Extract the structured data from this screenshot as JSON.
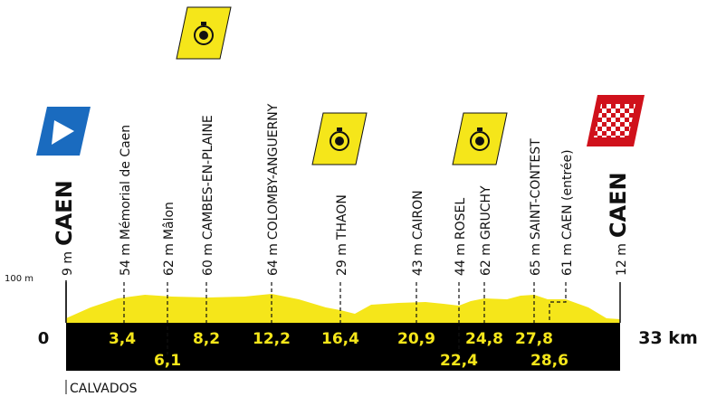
{
  "scale_label": "100 m",
  "start_label": "0",
  "finish_label": "33 km",
  "region": "CALVADOS",
  "waypoints": [
    {
      "elevation": "9 m",
      "name": "CAEN"
    },
    {
      "elevation": "54 m",
      "name": "Mémorial de Caen",
      "km": "3,4"
    },
    {
      "elevation": "62 m",
      "name": "Mâlon",
      "km": "6,1"
    },
    {
      "elevation": "60 m",
      "name": "CAMBES-EN-PLAINE",
      "km": "8,2"
    },
    {
      "elevation": "64 m",
      "name": "COLOMBY-ANGUERNY",
      "km": "12,2"
    },
    {
      "elevation": "29 m",
      "name": "THAON",
      "km": "16,4"
    },
    {
      "elevation": "43 m",
      "name": "CAIRON",
      "km": "20,9"
    },
    {
      "elevation": "44 m",
      "name": "ROSEL",
      "km": "22,4"
    },
    {
      "elevation": "62 m",
      "name": "GRUCHY",
      "km": "24,8"
    },
    {
      "elevation": "65 m",
      "name": "SAINT-CONTEST",
      "km": "27,8"
    },
    {
      "elevation": "61 m",
      "name": "CAEN (entrée)",
      "km": "28,6"
    },
    {
      "elevation": "12 m",
      "name": "CAEN"
    }
  ]
}
